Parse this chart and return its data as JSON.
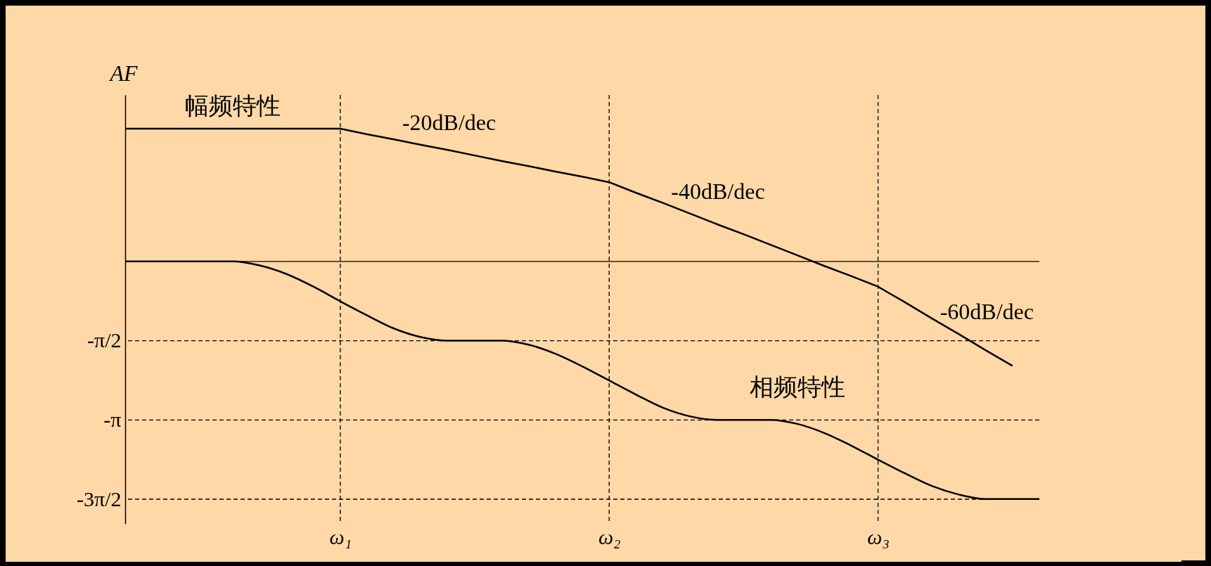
{
  "chart_data": {
    "type": "line",
    "ylabel": "AF",
    "line_style": "solid",
    "marker": "none",
    "categories": [
      null,
      null,
      null,
      null,
      null,
      null,
      null,
      null,
      "ω₁",
      null,
      null,
      null,
      null,
      null,
      null,
      null,
      null,
      null,
      "ω₂",
      null,
      null,
      null,
      null,
      null,
      null,
      null,
      null,
      null,
      "ω₃",
      null,
      null,
      null,
      null,
      null,
      null
    ],
    "ylim": [
      -5.2,
      3.3
    ],
    "yticks": [
      {
        "value": -1.5708,
        "label": "-π/2"
      },
      {
        "value": -3.1416,
        "label": "-π"
      },
      {
        "value": -4.7124,
        "label": "-3π/2"
      }
    ],
    "series": [
      {
        "name": "幅频特性",
        "color": "#000000",
        "values": [
          2.63,
          2.63,
          2.63,
          2.63,
          2.63,
          2.63,
          2.63,
          2.63,
          2.63,
          2.52,
          2.42,
          2.31,
          2.21,
          2.1,
          1.99,
          1.89,
          1.78,
          1.68,
          1.57,
          1.36,
          1.16,
          0.95,
          0.74,
          0.54,
          0.33,
          0.12,
          -0.09,
          -0.29,
          -0.5,
          -0.81,
          -1.13,
          -1.44,
          -1.76,
          -2.07,
          null
        ]
      },
      {
        "name": "相频特性",
        "color": "#000000",
        "values": [
          0,
          0,
          0,
          0,
          0,
          -0.08,
          -0.25,
          -0.5,
          -0.79,
          -1.07,
          -1.33,
          -1.5,
          -1.57,
          -1.57,
          -1.57,
          -1.65,
          -1.83,
          -2.08,
          -2.36,
          -2.64,
          -2.9,
          -3.07,
          -3.14,
          -3.14,
          -3.14,
          -3.22,
          -3.4,
          -3.65,
          -3.93,
          -4.2,
          -4.45,
          -4.62,
          -4.71,
          -4.71,
          -4.71
        ]
      }
    ],
    "ref_lines": [
      {
        "axis": "y",
        "value": 0,
        "line_style": "solid"
      },
      {
        "axis": "x",
        "value": "ω₁",
        "line_style": "dashed"
      },
      {
        "axis": "x",
        "value": "ω₂",
        "line_style": "dashed"
      },
      {
        "axis": "x",
        "value": "ω₃",
        "line_style": "dashed"
      },
      {
        "axis": "y",
        "value": -1.5708,
        "line_style": "dashed"
      },
      {
        "axis": "y",
        "value": -3.1416,
        "line_style": "dashed"
      },
      {
        "axis": "y",
        "value": -4.7124,
        "line_style": "dashed"
      }
    ],
    "annotations": [
      "-20dB/dec",
      "-40dB/dec",
      "-60dB/dec"
    ]
  }
}
